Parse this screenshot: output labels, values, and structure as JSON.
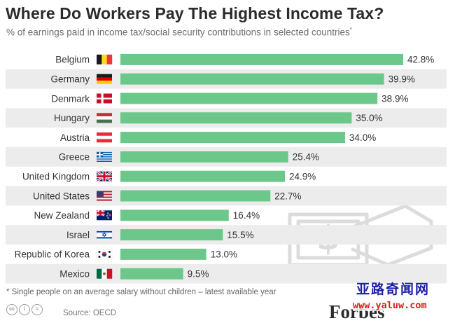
{
  "chart_data": {
    "type": "bar",
    "orientation": "horizontal",
    "title": "Where Do Workers Pay The Highest Income Tax?",
    "subtitle": "% of earnings paid in income tax/social security contributions in selected countries",
    "subtitle_marker": "*",
    "categories": [
      "Belgium",
      "Germany",
      "Denmark",
      "Hungary",
      "Austria",
      "Greece",
      "United Kingdom",
      "United States",
      "New Zealand",
      "Israel",
      "Republic of Korea",
      "Mexico"
    ],
    "values": [
      42.8,
      39.9,
      38.9,
      35.0,
      34.0,
      25.4,
      24.9,
      22.7,
      16.4,
      15.5,
      13.0,
      9.5
    ],
    "value_labels": [
      "42.8%",
      "39.9%",
      "38.9%",
      "35.0%",
      "34.0%",
      "25.4%",
      "24.9%",
      "22.7%",
      "16.4%",
      "15.5%",
      "13.0%",
      "9.5%"
    ],
    "flag_icons": [
      "belgium-flag-icon",
      "germany-flag-icon",
      "denmark-flag-icon",
      "hungary-flag-icon",
      "austria-flag-icon",
      "greece-flag-icon",
      "uk-flag-icon",
      "usa-flag-icon",
      "new-zealand-flag-icon",
      "israel-flag-icon",
      "korea-flag-icon",
      "mexico-flag-icon"
    ],
    "xlim": [
      0,
      42.8
    ],
    "grid": false,
    "legend": "none",
    "bar_color": "#6cc88a",
    "row_band_color": "#ececec",
    "watermark_icon": "money-hand-icon"
  },
  "footnote": "* Single people on an average salary without children – latest available year",
  "source": "Source: OECD",
  "brand": "Forbes",
  "license_icons": [
    "cc-icon",
    "by-icon",
    "nd-icon"
  ],
  "watermark_site_name": "亚路奇闻网",
  "watermark_url": "www.yaluw.com"
}
